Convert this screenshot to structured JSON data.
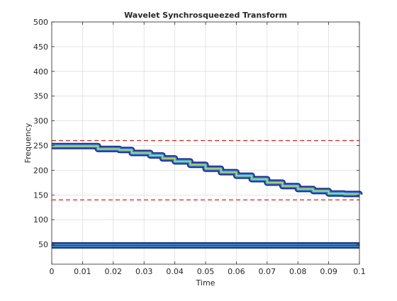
{
  "chart_data": {
    "type": "line",
    "title": "Wavelet Synchrosqueezed Transform",
    "xlabel": "Time",
    "ylabel": "Frequency",
    "xlim": [
      0,
      0.1
    ],
    "ylim": [
      10,
      500
    ],
    "xticks": [
      0,
      0.01,
      0.02,
      0.03,
      0.04,
      0.05,
      0.06,
      0.07,
      0.08,
      0.09,
      0.1
    ],
    "xtick_labels": [
      "0",
      "0.01",
      "0.02",
      "0.03",
      "0.04",
      "0.05",
      "0.06",
      "0.07",
      "0.08",
      "0.09",
      "0.1"
    ],
    "yticks": [
      50,
      100,
      150,
      200,
      250,
      300,
      350,
      400,
      450,
      500
    ],
    "ytick_labels": [
      "50",
      "100",
      "150",
      "200",
      "250",
      "300",
      "350",
      "400",
      "450",
      "500"
    ],
    "grid": true,
    "series": [
      {
        "kind": "ridge",
        "color": "#3a5fd6",
        "core_color": "#c8d84a",
        "x": [
          0,
          0.005,
          0.0125,
          0.015,
          0.022,
          0.026,
          0.032,
          0.036,
          0.04,
          0.045,
          0.05,
          0.055,
          0.06,
          0.065,
          0.07,
          0.075,
          0.08,
          0.085,
          0.09,
          0.095,
          0.1
        ],
        "y": [
          249,
          249,
          249,
          243,
          241,
          235,
          230,
          224,
          218,
          211,
          203,
          196,
          189,
          182,
          175,
          168,
          162,
          158,
          153,
          152,
          151
        ]
      },
      {
        "kind": "ridge",
        "color": "#3a4fb0",
        "core_color": "#2a3a8a",
        "x": [
          0,
          0.02,
          0.04,
          0.06,
          0.08,
          0.1
        ],
        "y": [
          48,
          48,
          48,
          48,
          48,
          48
        ]
      },
      {
        "kind": "threshold",
        "color": "#d62020",
        "dashed": true,
        "x": [
          0,
          0.1
        ],
        "y": [
          260,
          260
        ]
      },
      {
        "kind": "threshold",
        "color": "#d62020",
        "dashed": true,
        "x": [
          0,
          0.1
        ],
        "y": [
          140,
          140
        ]
      }
    ]
  }
}
